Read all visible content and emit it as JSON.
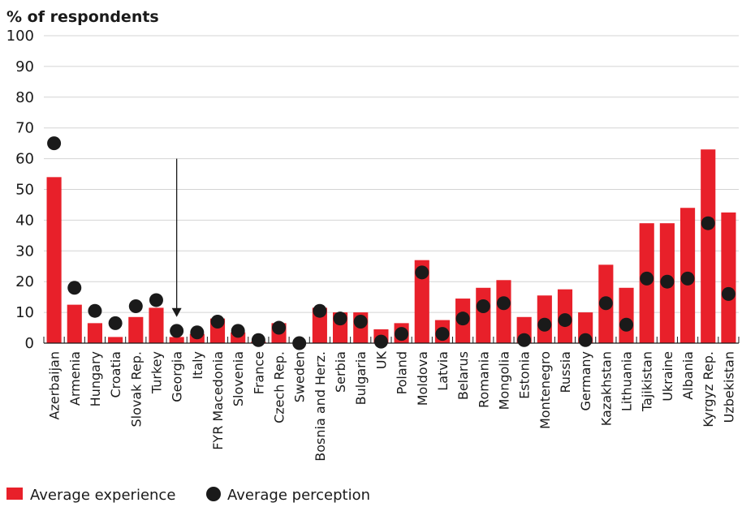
{
  "chart_data": {
    "type": "bar",
    "title": "% of respondents",
    "ylim": [
      0,
      100
    ],
    "yticks": [
      0,
      10,
      20,
      30,
      40,
      50,
      60,
      70,
      80,
      90,
      100
    ],
    "grid": true,
    "legend_position": "bottom-left",
    "highlight_category": "Georgia",
    "categories": [
      "Azerbaijan",
      "Armenia",
      "Hungary",
      "Croatia",
      "Slovak Rep.",
      "Turkey",
      "Georgia",
      "Italy",
      "FYR Macedonia",
      "Slovenia",
      "France",
      "Czech Rep.",
      "Sweden",
      "Bosnia and Herz.",
      "Serbia",
      "Bulgaria",
      "UK",
      "Poland",
      "Moldova",
      "Latvia",
      "Belarus",
      "Romania",
      "Mongolia",
      "Estonia",
      "Montenegro",
      "Russia",
      "Germany",
      "Kazakhstan",
      "Lithuania",
      "Tajikistan",
      "Ukraine",
      "Albania",
      "Kyrgyz Rep.",
      "Uzbekistan"
    ],
    "series": [
      {
        "name": "Average experience",
        "kind": "bar",
        "color": "#e8202a",
        "values": [
          54,
          12.5,
          6.5,
          2,
          8.5,
          11.5,
          2,
          3,
          8,
          3.5,
          0.5,
          6.5,
          0,
          11.5,
          10,
          10,
          4.5,
          6.5,
          27,
          7.5,
          14.5,
          18,
          20.5,
          8.5,
          15.5,
          17.5,
          10,
          25.5,
          18,
          39,
          39,
          44,
          63,
          42.5
        ]
      },
      {
        "name": "Average perception",
        "kind": "dot",
        "color": "#1a1a1a",
        "values": [
          65,
          18,
          10.5,
          6.5,
          12,
          14,
          4,
          3.5,
          7,
          4,
          1,
          5,
          0,
          10.5,
          8,
          7,
          0.5,
          3,
          23,
          3,
          8,
          12,
          13,
          1,
          6,
          7.5,
          1,
          13,
          6,
          21,
          20,
          21,
          39,
          16
        ]
      }
    ]
  },
  "legend": {
    "experience_label": "Average experience",
    "perception_label": "Average perception"
  }
}
